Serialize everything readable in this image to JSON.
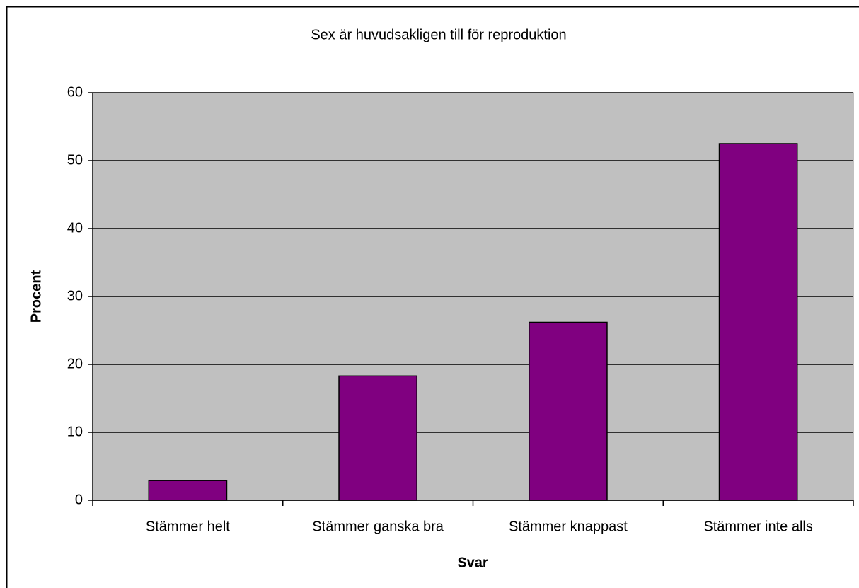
{
  "chart_data": {
    "type": "bar",
    "title": "Sex är huvudsakligen till för reproduktion",
    "x_label": "Svar",
    "y_label": "Procent",
    "categories": [
      "Stämmer helt",
      "Stämmer ganska bra",
      "Stämmer knappast",
      "Stämmer inte alls"
    ],
    "values": [
      2.9,
      18.3,
      26.2,
      52.5
    ],
    "color": "#800080",
    "ylim": [
      0,
      60
    ],
    "yticks": [
      0,
      10,
      20,
      30,
      40,
      50,
      60
    ],
    "grid": true
  }
}
